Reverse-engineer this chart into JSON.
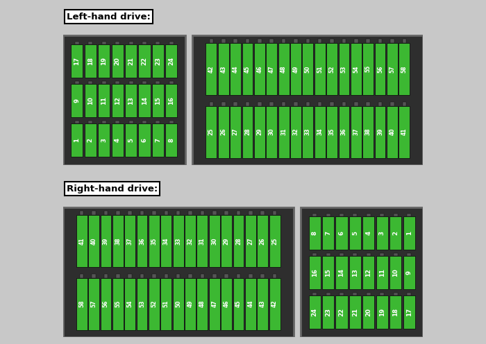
{
  "title_top": "Left-hand drive:",
  "title_bottom": "Right-hand drive:",
  "fuse_color": "#3cb832",
  "fuse_text_color": "#ffffff",
  "panel_bg": "#2e2e2e",
  "panel_edge": "#666666",
  "fig_bg": "#c8c8c8",
  "lhd": {
    "left_rows": [
      [
        1,
        2,
        3,
        4,
        5,
        6,
        7,
        8
      ],
      [
        9,
        10,
        11,
        12,
        13,
        14,
        15,
        16
      ],
      [
        17,
        18,
        19,
        20,
        21,
        22,
        23,
        24
      ]
    ],
    "right_rows": [
      [
        25,
        26,
        27,
        28,
        29,
        30,
        31,
        32,
        33,
        34,
        35,
        36,
        37,
        38,
        39,
        40,
        41
      ],
      [
        42,
        43,
        44,
        45,
        46,
        47,
        48,
        49,
        50,
        51,
        52,
        53,
        54,
        55,
        56,
        57,
        58
      ]
    ]
  },
  "rhd": {
    "left_rows": [
      [
        58,
        57,
        56,
        55,
        54,
        53,
        52,
        51,
        50,
        49,
        48,
        47,
        46,
        45,
        44,
        43,
        42
      ],
      [
        41,
        40,
        39,
        38,
        37,
        36,
        35,
        34,
        33,
        32,
        31,
        30,
        29,
        28,
        27,
        26,
        25
      ]
    ],
    "right_rows": [
      [
        24,
        23,
        22,
        21,
        20,
        19,
        18,
        17
      ],
      [
        16,
        15,
        14,
        13,
        12,
        11,
        10,
        9
      ],
      [
        8,
        7,
        6,
        5,
        4,
        3,
        2,
        1
      ]
    ]
  }
}
